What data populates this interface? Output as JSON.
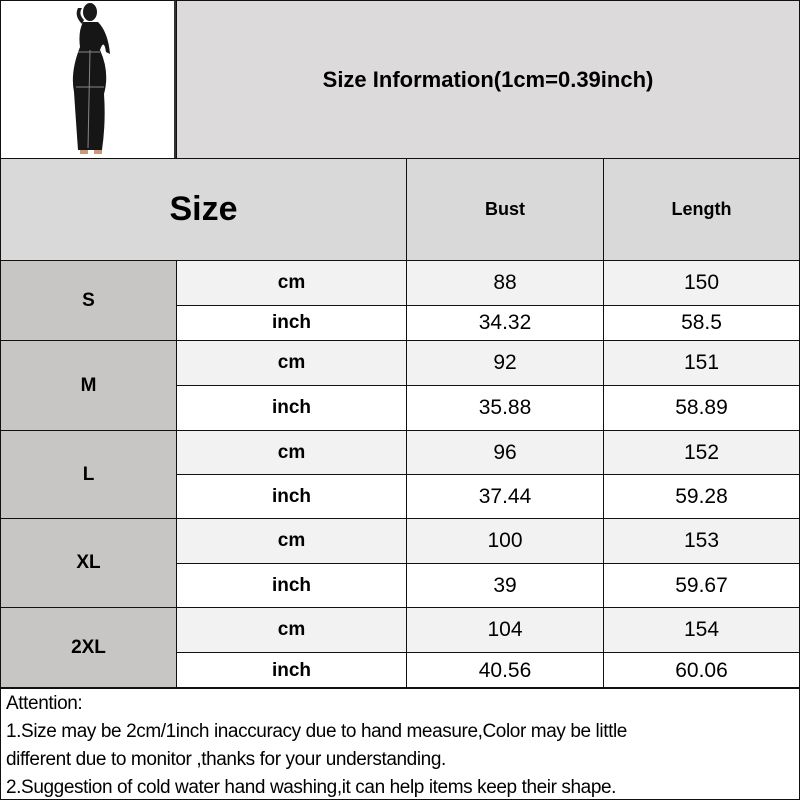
{
  "title": "Size Information(1cm=0.39inch)",
  "header": {
    "size": "Size",
    "bust": "Bust",
    "length": "Length"
  },
  "units": {
    "cm": "cm",
    "inch": "inch"
  },
  "rows": [
    {
      "size": "S",
      "cm": {
        "bust": "88",
        "length": "150"
      },
      "inch": {
        "bust": "34.32",
        "length": "58.5"
      }
    },
    {
      "size": "M",
      "cm": {
        "bust": "92",
        "length": "151"
      },
      "inch": {
        "bust": "35.88",
        "length": "58.89"
      }
    },
    {
      "size": "L",
      "cm": {
        "bust": "96",
        "length": "152"
      },
      "inch": {
        "bust": "37.44",
        "length": "59.28"
      }
    },
    {
      "size": "XL",
      "cm": {
        "bust": "100",
        "length": "153"
      },
      "inch": {
        "bust": "39",
        "length": "59.67"
      }
    },
    {
      "size": "2XL",
      "cm": {
        "bust": "104",
        "length": "154"
      },
      "inch": {
        "bust": "40.56",
        "length": "60.06"
      }
    }
  ],
  "attention": {
    "heading": "Attention:",
    "line1a": "1.Size may be 2cm/1inch inaccuracy due to hand measure,Color may be little",
    "line1b": "different due to monitor ,thanks for your understanding.",
    "line2": "2.Suggestion of cold water hand washing,it can help items keep their shape."
  },
  "colors": {
    "title_bg": "#dcdadb",
    "header_bg": "#d9d9d9",
    "size_bg": "#c8c5c5",
    "cm_row_bg": "#f2f2f2",
    "inch_row_bg": "#ffffff"
  }
}
